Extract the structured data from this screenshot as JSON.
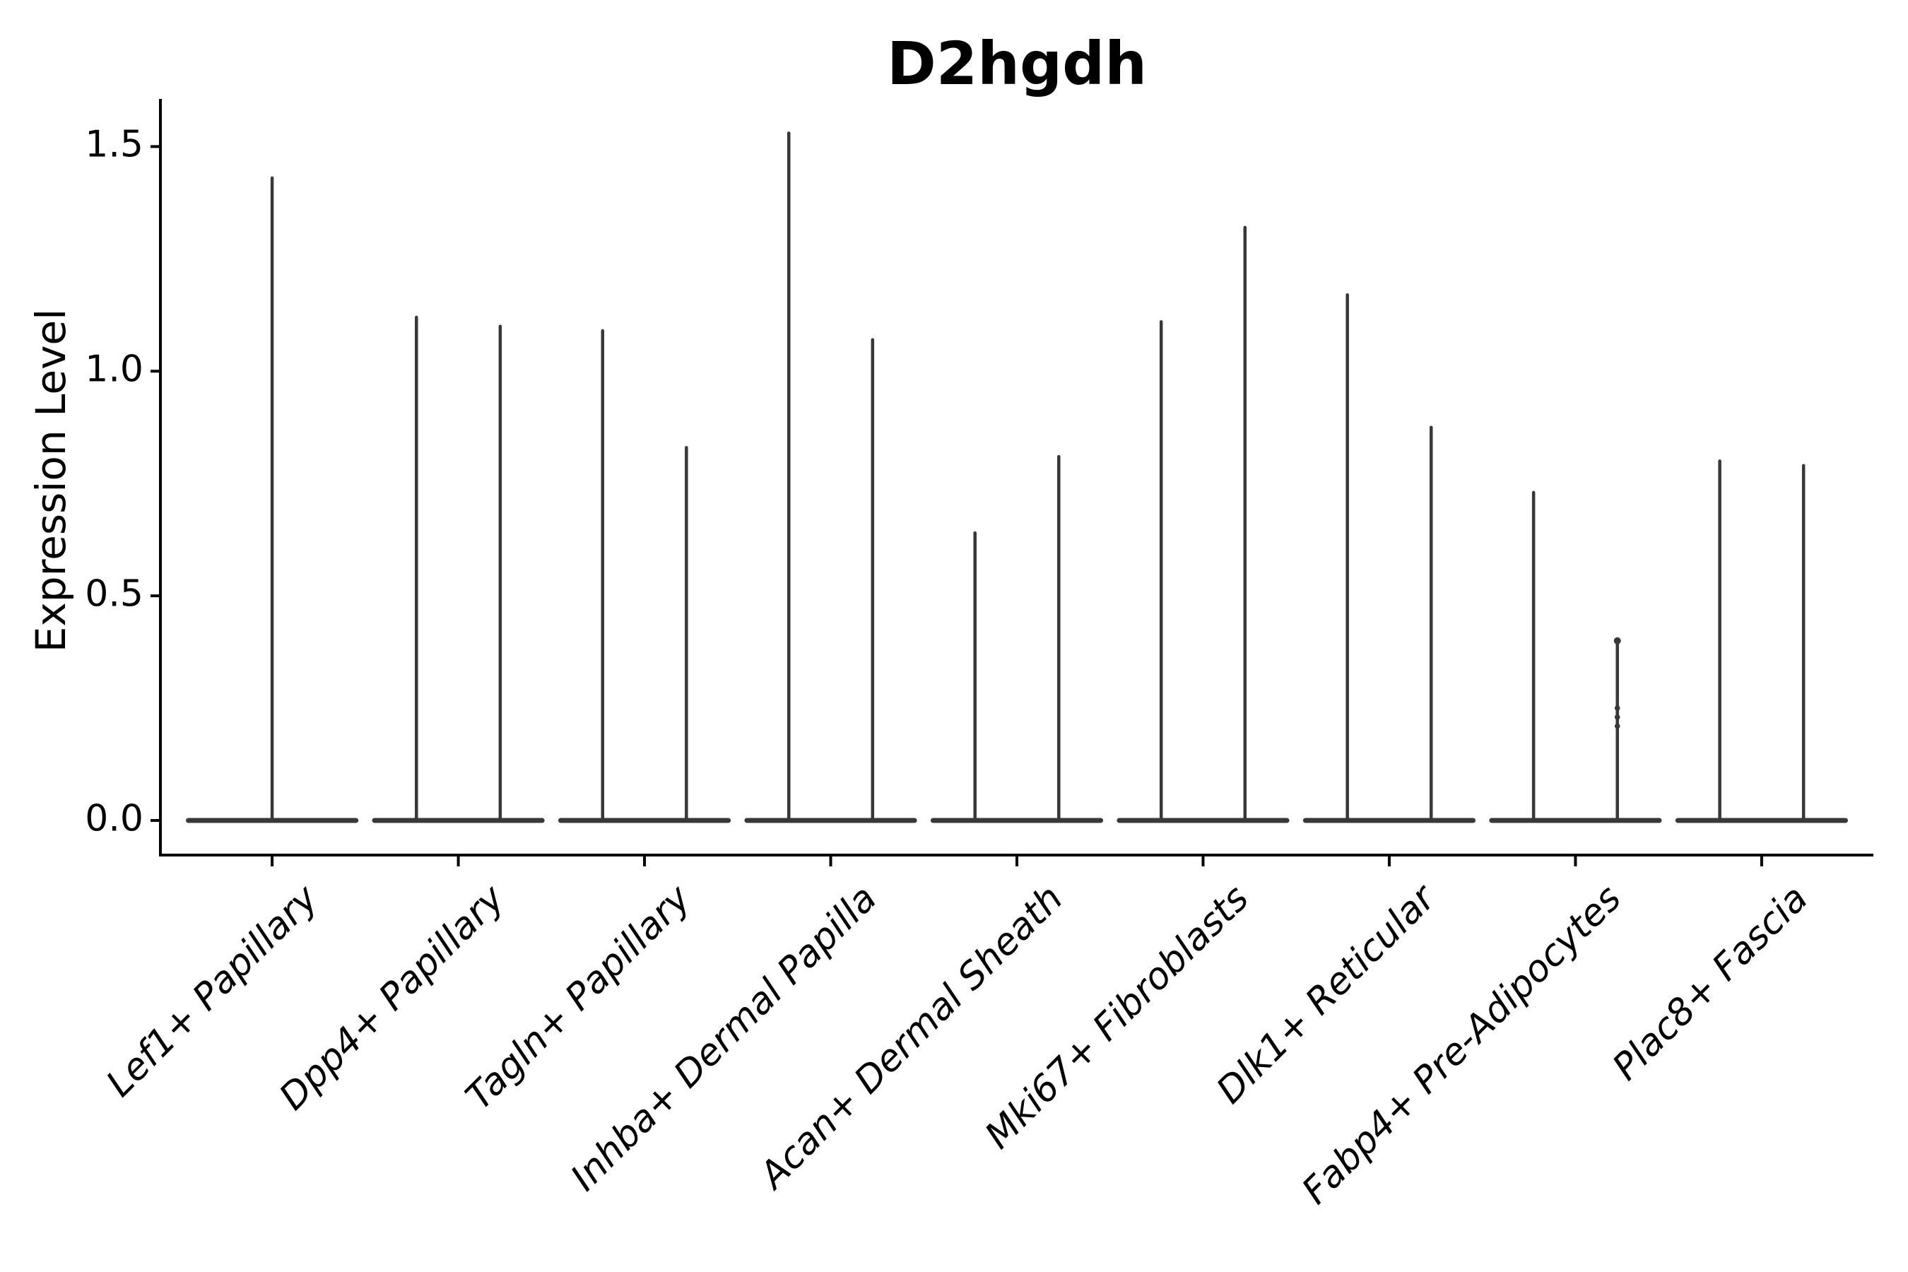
{
  "chart_data": {
    "type": "violin",
    "title": "D2hgdh",
    "ylabel": "Expression Level",
    "xlabel": "",
    "y_tick_values": [
      0.0,
      0.5,
      1.0,
      1.5
    ],
    "y_tick_labels": [
      "0.0",
      "0.5",
      "1.0",
      "1.5"
    ],
    "ylim": [
      -0.077,
      1.606
    ],
    "xlim": [
      0.4,
      9.6
    ],
    "grid": false,
    "legend": "none",
    "violin_total_width": 0.9,
    "dodge_offset": 0.225,
    "base_value": 0.0,
    "colors": {
      "violin": "#383838",
      "axis": "#000000",
      "text": "#000000",
      "background": "#ffffff"
    },
    "categories": [
      {
        "label": "Lef1+ Papillary",
        "x": 1,
        "spikes": [
          {
            "offset": 0.0,
            "max": 1.43
          }
        ]
      },
      {
        "label": "Dpp4+ Papillary",
        "x": 2,
        "spikes": [
          {
            "offset": -0.225,
            "max": 1.12
          },
          {
            "offset": 0.225,
            "max": 1.1
          }
        ]
      },
      {
        "label": "Tagln+ Papillary",
        "x": 3,
        "spikes": [
          {
            "offset": -0.225,
            "max": 1.09
          },
          {
            "offset": 0.225,
            "max": 0.83
          }
        ]
      },
      {
        "label": "Inhba+ Dermal Papilla",
        "x": 4,
        "spikes": [
          {
            "offset": -0.225,
            "max": 1.53
          },
          {
            "offset": 0.225,
            "max": 1.07
          }
        ]
      },
      {
        "label": "Acan+ Dermal Sheath",
        "x": 5,
        "spikes": [
          {
            "offset": -0.225,
            "max": 0.64
          },
          {
            "offset": 0.225,
            "max": 0.81
          }
        ]
      },
      {
        "label": "Mki67+ Fibroblasts",
        "x": 6,
        "spikes": [
          {
            "offset": -0.225,
            "max": 1.11
          },
          {
            "offset": 0.225,
            "max": 1.32
          }
        ]
      },
      {
        "label": "Dlk1+ Reticular",
        "x": 7,
        "spikes": [
          {
            "offset": -0.225,
            "max": 1.17
          },
          {
            "offset": 0.225,
            "max": 0.875
          }
        ]
      },
      {
        "label": "Fabp4+ Pre-Adipocytes",
        "x": 8,
        "spikes": [
          {
            "offset": -0.225,
            "max": 0.73
          },
          {
            "offset": 0.225,
            "max": 0.4,
            "points": [
              0.4,
              0.25,
              0.23,
              0.21
            ]
          }
        ]
      },
      {
        "label": "Plac8+ Fascia",
        "x": 9,
        "spikes": [
          {
            "offset": -0.225,
            "max": 0.8
          },
          {
            "offset": 0.225,
            "max": 0.79
          }
        ]
      }
    ]
  }
}
